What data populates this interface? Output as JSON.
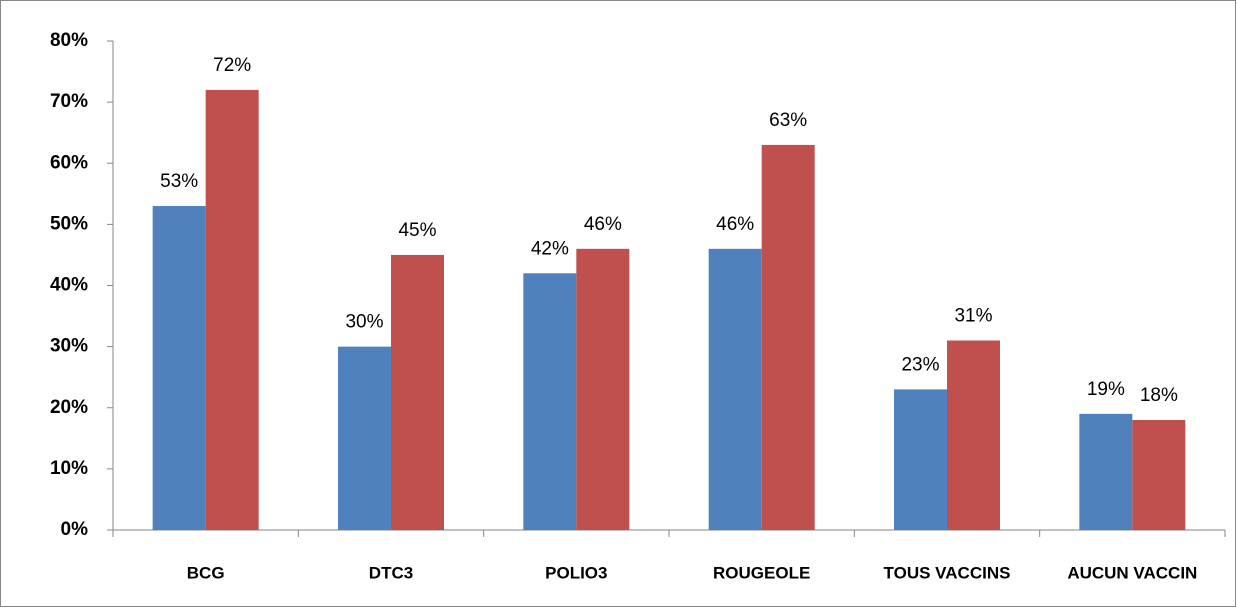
{
  "chart_data": {
    "type": "bar",
    "categories": [
      "BCG",
      "DTC3",
      "POLIO3",
      "ROUGEOLE",
      "TOUS VACCINS",
      "AUCUN VACCIN"
    ],
    "series": [
      {
        "color": "#4f81bd",
        "values": [
          53,
          30,
          42,
          46,
          23,
          19
        ],
        "value_labels": [
          "53%",
          "30%",
          "42%",
          "46%",
          "23%",
          "19%"
        ]
      },
      {
        "color": "#c0504d",
        "values": [
          72,
          45,
          46,
          63,
          31,
          18
        ],
        "value_labels": [
          "72%",
          "45%",
          "46%",
          "63%",
          "31%",
          "18%"
        ]
      }
    ],
    "ylim": [
      0,
      80
    ],
    "yticks": [
      {
        "value": 0,
        "label": "0%"
      },
      {
        "value": 10,
        "label": "10%"
      },
      {
        "value": 20,
        "label": "20%"
      },
      {
        "value": 30,
        "label": "30%"
      },
      {
        "value": 40,
        "label": "40%"
      },
      {
        "value": 50,
        "label": "50%"
      },
      {
        "value": 60,
        "label": "60%"
      },
      {
        "value": 70,
        "label": "70%"
      },
      {
        "value": 80,
        "label": "80%"
      }
    ],
    "grid": false
  }
}
